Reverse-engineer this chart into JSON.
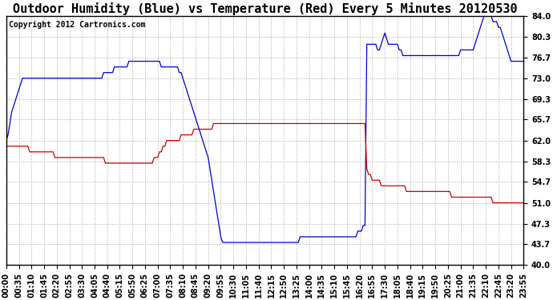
{
  "title": "Outdoor Humidity (Blue) vs Temperature (Red) Every 5 Minutes 20120530",
  "copyright": "Copyright 2012 Cartronics.com",
  "ymin": 40.0,
  "ymax": 84.0,
  "yticks": [
    84.0,
    80.3,
    76.7,
    73.0,
    69.3,
    65.7,
    62.0,
    58.3,
    54.7,
    51.0,
    47.3,
    43.7,
    40.0
  ],
  "blue_color": "#0000cc",
  "red_color": "#cc0000",
  "background": "#ffffff",
  "grid_color": "#aaaaaa",
  "title_fontsize": 11,
  "copyright_fontsize": 7,
  "tick_fontsize": 7,
  "tick_step": 7,
  "n_points": 288,
  "humidity_data": [
    62,
    63,
    65,
    67,
    68,
    69,
    70,
    71,
    72,
    73,
    73,
    73,
    73,
    73,
    73,
    73,
    73,
    73,
    73,
    73,
    73,
    73,
    73,
    73,
    73,
    73,
    73,
    73,
    73,
    73,
    73,
    73,
    73,
    73,
    73,
    73,
    73,
    73,
    73,
    73,
    73,
    73,
    73,
    73,
    73,
    73,
    73,
    73,
    73,
    73,
    73,
    73,
    73,
    73,
    74,
    74,
    74,
    74,
    74,
    74,
    75,
    75,
    75,
    75,
    75,
    75,
    75,
    75,
    76,
    76,
    76,
    76,
    76,
    76,
    76,
    76,
    76,
    76,
    76,
    76,
    76,
    76,
    76,
    76,
    76,
    76,
    75,
    75,
    75,
    75,
    75,
    75,
    75,
    75,
    75,
    75,
    74,
    74,
    73,
    72,
    71,
    70,
    69,
    68,
    67,
    66,
    65,
    64,
    63,
    62,
    61,
    60,
    59,
    57,
    55,
    53,
    51,
    49,
    47,
    45,
    44,
    44,
    44,
    44,
    44,
    44,
    44,
    44,
    44,
    44,
    44,
    44,
    44,
    44,
    44,
    44,
    44,
    44,
    44,
    44,
    44,
    44,
    44,
    44,
    44,
    44,
    44,
    44,
    44,
    44,
    44,
    44,
    44,
    44,
    44,
    44,
    44,
    44,
    44,
    44,
    44,
    44,
    44,
    45,
    45,
    45,
    45,
    45,
    45,
    45,
    45,
    45,
    45,
    45,
    45,
    45,
    45,
    45,
    45,
    45,
    45,
    45,
    45,
    45,
    45,
    45,
    45,
    45,
    45,
    45,
    45,
    45,
    45,
    45,
    45,
    46,
    46,
    46,
    47,
    47,
    79,
    79,
    79,
    79,
    79,
    79,
    78,
    78,
    79,
    80,
    81,
    80,
    79,
    79,
    79,
    79,
    79,
    79,
    78,
    78,
    77,
    77,
    77,
    77,
    77,
    77,
    77,
    77,
    77,
    77,
    77,
    77,
    77,
    77,
    77,
    77,
    77,
    77,
    77,
    77,
    77,
    77,
    77,
    77,
    77,
    77,
    77,
    77,
    77,
    77,
    77,
    77,
    78,
    78,
    78,
    78,
    78,
    78,
    78,
    78,
    79,
    80,
    81,
    82,
    83,
    84,
    84,
    84,
    84,
    84,
    83,
    83,
    83,
    82,
    82,
    81,
    80,
    79,
    78,
    77,
    76,
    76,
    76,
    76,
    76,
    76,
    76,
    76
  ],
  "temperature_data": [
    61,
    61,
    61,
    61,
    61,
    61,
    61,
    61,
    61,
    61,
    61,
    61,
    61,
    60,
    60,
    60,
    60,
    60,
    60,
    60,
    60,
    60,
    60,
    60,
    60,
    60,
    60,
    59,
    59,
    59,
    59,
    59,
    59,
    59,
    59,
    59,
    59,
    59,
    59,
    59,
    59,
    59,
    59,
    59,
    59,
    59,
    59,
    59,
    59,
    59,
    59,
    59,
    59,
    59,
    59,
    58,
    58,
    58,
    58,
    58,
    58,
    58,
    58,
    58,
    58,
    58,
    58,
    58,
    58,
    58,
    58,
    58,
    58,
    58,
    58,
    58,
    58,
    58,
    58,
    58,
    58,
    58,
    59,
    59,
    59,
    60,
    60,
    61,
    61,
    62,
    62,
    62,
    62,
    62,
    62,
    62,
    62,
    63,
    63,
    63,
    63,
    63,
    63,
    63,
    64,
    64,
    64,
    64,
    64,
    64,
    64,
    64,
    64,
    64,
    64,
    65,
    65,
    65,
    65,
    65,
    65,
    65,
    65,
    65,
    65,
    65,
    65,
    65,
    65,
    65,
    65,
    65,
    65,
    65,
    65,
    65,
    65,
    65,
    65,
    65,
    65,
    65,
    65,
    65,
    65,
    65,
    65,
    65,
    65,
    65,
    65,
    65,
    65,
    65,
    65,
    65,
    65,
    65,
    65,
    65,
    65,
    65,
    65,
    65,
    65,
    65,
    65,
    65,
    65,
    65,
    65,
    65,
    65,
    65,
    65,
    65,
    65,
    65,
    65,
    65,
    65,
    65,
    65,
    65,
    65,
    65,
    65,
    65,
    65,
    65,
    65,
    65,
    65,
    65,
    65,
    65,
    65,
    65,
    65,
    65,
    57,
    56,
    56,
    55,
    55,
    55,
    55,
    55,
    54,
    54,
    54,
    54,
    54,
    54,
    54,
    54,
    54,
    54,
    54,
    54,
    54,
    54,
    53,
    53,
    53,
    53,
    53,
    53,
    53,
    53,
    53,
    53,
    53,
    53,
    53,
    53,
    53,
    53,
    53,
    53,
    53,
    53,
    53,
    53,
    53,
    53,
    53,
    52,
    52,
    52,
    52,
    52,
    52,
    52,
    52,
    52,
    52,
    52,
    52,
    52,
    52,
    52,
    52,
    52,
    52,
    52,
    52,
    52,
    52,
    52,
    51,
    51,
    51,
    51,
    51,
    51,
    51,
    51,
    51,
    51,
    51,
    51,
    51,
    51,
    51,
    51,
    51,
    51
  ]
}
